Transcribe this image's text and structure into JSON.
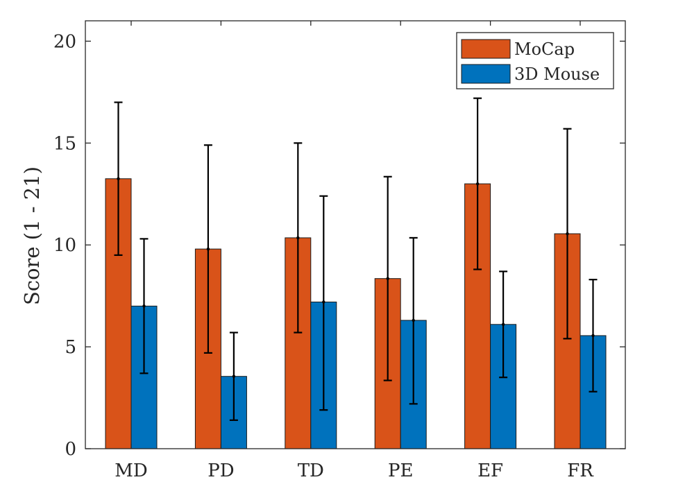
{
  "chart_data": {
    "type": "bar",
    "title": "",
    "xlabel": "",
    "ylabel": "Score (1 - 21)",
    "ylim": [
      0,
      21
    ],
    "yticks": [
      0,
      5,
      10,
      15,
      20
    ],
    "grid": false,
    "legend_position": "top-right",
    "categories": [
      "MD",
      "PD",
      "TD",
      "PE",
      "EF",
      "FR"
    ],
    "series": [
      {
        "name": "MoCap",
        "color": "#D95319",
        "values": [
          13.25,
          9.8,
          10.35,
          8.35,
          13.0,
          10.55
        ],
        "error_low": [
          9.5,
          4.7,
          5.7,
          3.35,
          8.8,
          5.4
        ],
        "error_high": [
          17.0,
          14.9,
          15.0,
          13.35,
          17.2,
          15.7
        ]
      },
      {
        "name": "3D Mouse",
        "color": "#0072BD",
        "values": [
          7.0,
          3.55,
          7.2,
          6.3,
          6.1,
          5.55
        ],
        "error_low": [
          3.7,
          1.4,
          1.9,
          2.2,
          3.5,
          2.8
        ],
        "error_high": [
          10.3,
          5.7,
          12.4,
          10.35,
          8.7,
          8.3
        ]
      }
    ]
  }
}
